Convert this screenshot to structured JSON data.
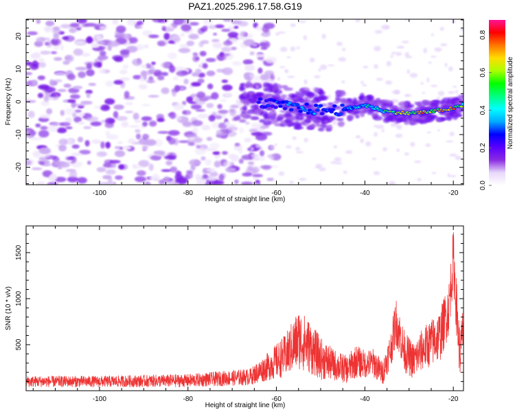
{
  "title": "PAZ1.2025.296.17.58.G19",
  "chart_data": [
    {
      "type": "heatmap",
      "title": "PAZ1.2025.296.17.58.G19",
      "xlabel": "Height of straight line (km)",
      "ylabel": "Frequency (Hz)",
      "xlim": [
        -116.6,
        -17.7
      ],
      "ylim": [
        -25.3,
        25.2
      ],
      "xticks": [
        -100,
        -80,
        -60,
        -40,
        -20
      ],
      "xtick_labels": [
        "-100",
        "-80",
        "-60",
        "-40",
        "-20"
      ],
      "yticks": [
        -20,
        -10,
        0,
        10,
        20
      ],
      "ytick_labels": [
        "-20",
        "-10",
        "0",
        "10",
        "20"
      ],
      "colorbar": {
        "label": "Normalized spectral amplitude",
        "range": [
          0,
          0.88
        ],
        "ticks": [
          0.0,
          0.2,
          0.4,
          0.6,
          0.8
        ],
        "tick_labels": [
          "0.0",
          "0.2",
          "0.4",
          "0.6",
          "0.8"
        ],
        "colors": [
          "#ffffff",
          "#e8d8fa",
          "#8a2be2",
          "#5a00ff",
          "#0000ff",
          "#00aaff",
          "#00ffff",
          "#00ff80",
          "#00ff00",
          "#aaff00",
          "#ffdd00",
          "#ff7700",
          "#ff0000",
          "#ff1493"
        ]
      },
      "ridge": {
        "description": "signal track frequency vs height",
        "x": [
          -66,
          -60,
          -55,
          -50,
          -45,
          -40,
          -35,
          -30,
          -25,
          -20,
          -17.7
        ],
        "y": [
          0,
          -1,
          -2,
          -2.5,
          -2.5,
          -1,
          -3,
          -3.5,
          -3,
          -2,
          -1
        ],
        "peak_amplitude": [
          0.25,
          0.32,
          0.42,
          0.35,
          0.38,
          0.5,
          0.6,
          0.85,
          0.75,
          0.85,
          0.6
        ]
      },
      "noise_region": {
        "x_from": -116.6,
        "x_to": -66,
        "amplitude": 0.15
      }
    },
    {
      "type": "line",
      "xlabel": "Height of straight line (km)",
      "ylabel": "SNR (10 * v/v)",
      "xlim": [
        -116.6,
        -17.7
      ],
      "ylim": [
        0,
        1790
      ],
      "xticks": [
        -100,
        -80,
        -60,
        -40,
        -20
      ],
      "xtick_labels": [
        "-100",
        "-80",
        "-60",
        "-40",
        "-20"
      ],
      "yticks": [
        500,
        1000,
        1500
      ],
      "ytick_labels": [
        "500",
        "1000",
        "1500"
      ],
      "color": "#ee3333",
      "envelope": {
        "x": [
          -116.6,
          -100,
          -80,
          -66,
          -62,
          -58,
          -55,
          -53,
          -50,
          -47,
          -44,
          -42,
          -40,
          -38,
          -36,
          -34,
          -33,
          -31,
          -29,
          -27,
          -25,
          -23,
          -21,
          -20,
          -19,
          -18.5,
          -17.7
        ],
        "mean": [
          100,
          100,
          110,
          150,
          260,
          380,
          560,
          500,
          350,
          280,
          230,
          320,
          290,
          300,
          190,
          480,
          760,
          420,
          320,
          450,
          520,
          600,
          900,
          1450,
          700,
          380,
          700
        ],
        "spread": [
          60,
          60,
          70,
          90,
          150,
          230,
          330,
          300,
          230,
          170,
          150,
          180,
          150,
          160,
          130,
          200,
          260,
          220,
          200,
          230,
          260,
          280,
          300,
          330,
          300,
          250,
          300
        ]
      }
    }
  ]
}
